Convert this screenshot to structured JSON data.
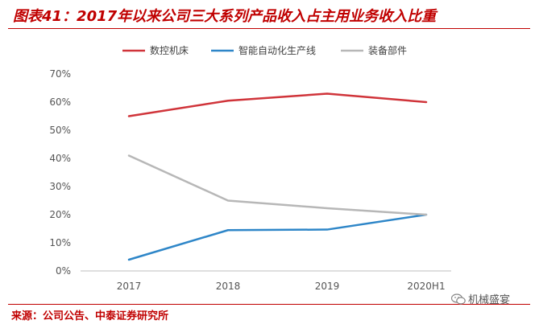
{
  "title": "图表41：2017年以来公司三大系列产品收入占主用业务收入比重",
  "source": "来源：公司公告、中泰证券研究所",
  "watermark": "机械盛宴",
  "colors": {
    "title": "#c00000",
    "series": [
      "#d0343a",
      "#2e86c8",
      "#b7b7b7"
    ]
  },
  "chart_data": {
    "type": "line",
    "title": "2017年以来公司三大系列产品收入占主用业务收入比重",
    "xlabel": "",
    "ylabel": "",
    "categories": [
      "2017",
      "2018",
      "2019",
      "2020H1"
    ],
    "ylim": [
      0,
      70
    ],
    "yticks": [
      0,
      10,
      20,
      30,
      40,
      50,
      60,
      70
    ],
    "ytick_labels": [
      "0%",
      "10%",
      "20%",
      "30%",
      "40%",
      "50%",
      "60%",
      "70%"
    ],
    "grid": false,
    "legend_position": "top",
    "series": [
      {
        "name": "数控机床",
        "values": [
          55,
          60.5,
          63,
          60
        ]
      },
      {
        "name": "智能自动化生产线",
        "values": [
          4,
          14.5,
          14.7,
          20
        ]
      },
      {
        "name": "装备部件",
        "values": [
          41,
          25,
          22.3,
          20
        ]
      }
    ]
  }
}
